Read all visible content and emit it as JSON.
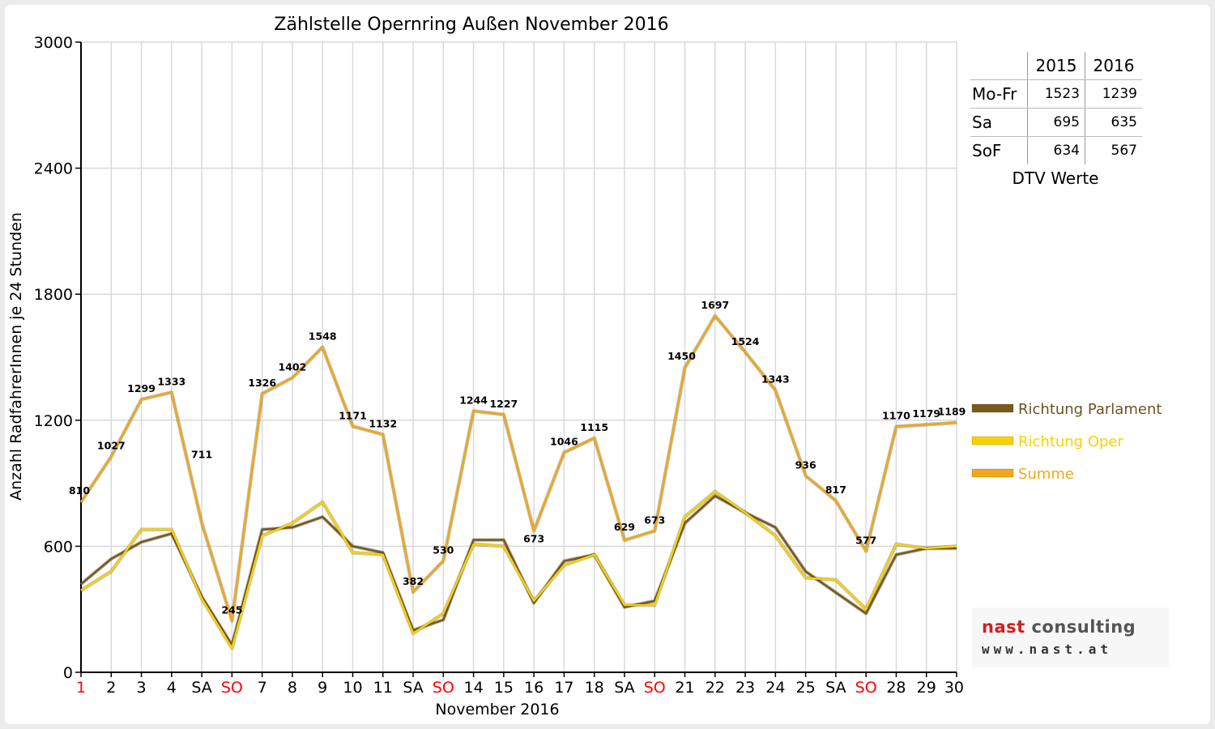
{
  "chart_data": {
    "type": "line",
    "title": "Zählstelle Opernring Außen November 2016",
    "xlabel": "November 2016",
    "ylabel": "Anzahl RadfahrerInnen je 24 Stunden",
    "ylim": [
      0,
      3000
    ],
    "yticks": [
      "0",
      "600",
      "1200",
      "1800",
      "2400",
      "3000"
    ],
    "grid": true,
    "legend_position": "right",
    "categories": [
      "1",
      "2",
      "3",
      "4",
      "SA",
      "SO",
      "7",
      "8",
      "9",
      "10",
      "11",
      "SA",
      "SO",
      "14",
      "15",
      "16",
      "17",
      "18",
      "SA",
      "SO",
      "21",
      "22",
      "23",
      "24",
      "25",
      "SA",
      "SO",
      "28",
      "29",
      "30"
    ],
    "red_categories": [
      0,
      5,
      12,
      19,
      26
    ],
    "series": [
      {
        "name": "Richtung Parlament",
        "color": "#7a5a1c",
        "values": [
          420,
          540,
          620,
          660,
          360,
          130,
          680,
          690,
          740,
          600,
          570,
          200,
          250,
          630,
          630,
          330,
          530,
          560,
          310,
          340,
          710,
          840,
          760,
          690,
          480,
          380,
          280,
          560,
          590,
          590
        ]
      },
      {
        "name": "Richtung Oper",
        "color": "#f8d100",
        "values": [
          390,
          480,
          680,
          680,
          350,
          115,
          650,
          710,
          810,
          570,
          560,
          185,
          280,
          610,
          600,
          340,
          510,
          560,
          320,
          320,
          740,
          860,
          760,
          650,
          450,
          440,
          300,
          610,
          590,
          600
        ]
      },
      {
        "name": "Summe",
        "color": "#f0a818",
        "values": [
          810,
          1027,
          1299,
          1333,
          711,
          245,
          1326,
          1402,
          1548,
          1171,
          1132,
          382,
          530,
          1244,
          1227,
          673,
          1046,
          1115,
          629,
          673,
          1450,
          1697,
          1524,
          1343,
          936,
          817,
          577,
          1170,
          1179,
          1189
        ]
      }
    ],
    "data_labels": [
      "810",
      "1027",
      "1299",
      "1333",
      "711",
      "245",
      "1326",
      "1402",
      "1548",
      "1171",
      "1132",
      "382",
      "530",
      "1244",
      "1227",
      "673",
      "1046",
      "1115",
      "629",
      "673",
      "1450",
      "1697",
      "1524",
      "1343",
      "936",
      "817",
      "577",
      "1170",
      "1179",
      "1189"
    ]
  },
  "dtv_table": {
    "columns": [
      "2015",
      "2016"
    ],
    "rows": [
      {
        "label": "Mo-Fr",
        "v2015": "1523",
        "v2016": "1239"
      },
      {
        "label": "Sa",
        "v2015": "695",
        "v2016": "635"
      },
      {
        "label": "SoF",
        "v2015": "634",
        "v2016": "567"
      }
    ],
    "caption": "DTV Werte"
  },
  "logo": {
    "name_part1": "nast",
    "name_part2": "consulting",
    "url": "www.nast.at"
  },
  "colors": {
    "grid": "#d9d9d9",
    "axis": "#000000",
    "weekend_red": "#ff0000"
  }
}
